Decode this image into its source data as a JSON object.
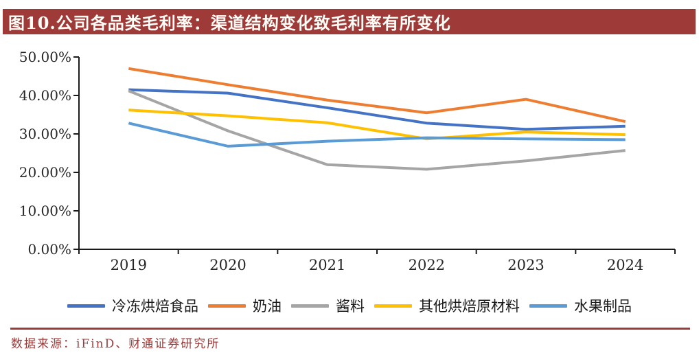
{
  "header": {
    "title": "图10.公司各品类毛利率：渠道结构变化致毛利率有所变化"
  },
  "footer": {
    "source": "数据来源：iFinD、财通证券研究所"
  },
  "colors": {
    "header_bg": "#9E3B39",
    "header_text": "#FFFDF8",
    "footer_accent": "#9E3B39",
    "axis": "#1A1A1A"
  },
  "chart_data": {
    "type": "line",
    "title": "公司各品类毛利率",
    "categories": [
      "2019",
      "2020",
      "2021",
      "2022",
      "2023",
      "2024"
    ],
    "series": [
      {
        "name": "冷冻烘焙食品",
        "color": "#4472C4",
        "values": [
          41.5,
          40.6,
          36.8,
          32.8,
          31.2,
          32.0
        ]
      },
      {
        "name": "奶油",
        "color": "#ED7D31",
        "values": [
          47.0,
          42.8,
          38.8,
          35.5,
          39.0,
          33.2
        ]
      },
      {
        "name": "酱料",
        "color": "#A5A5A5",
        "values": [
          41.2,
          30.8,
          22.0,
          20.8,
          23.0,
          25.7
        ]
      },
      {
        "name": "其他烘焙原材料",
        "color": "#FFC000",
        "values": [
          36.2,
          34.7,
          32.9,
          28.7,
          30.5,
          29.8
        ]
      },
      {
        "name": "水果制品",
        "color": "#5B9BD5",
        "values": [
          32.8,
          26.8,
          28.1,
          29.0,
          28.7,
          28.5
        ]
      }
    ],
    "xlabel": "",
    "ylabel": "",
    "ylim": [
      0,
      50
    ],
    "y_tick_step": 10,
    "y_ticks": [
      "0.00%",
      "10.00%",
      "20.00%",
      "30.00%",
      "40.00%",
      "50.00%"
    ],
    "grid": false,
    "legend_position": "bottom"
  }
}
